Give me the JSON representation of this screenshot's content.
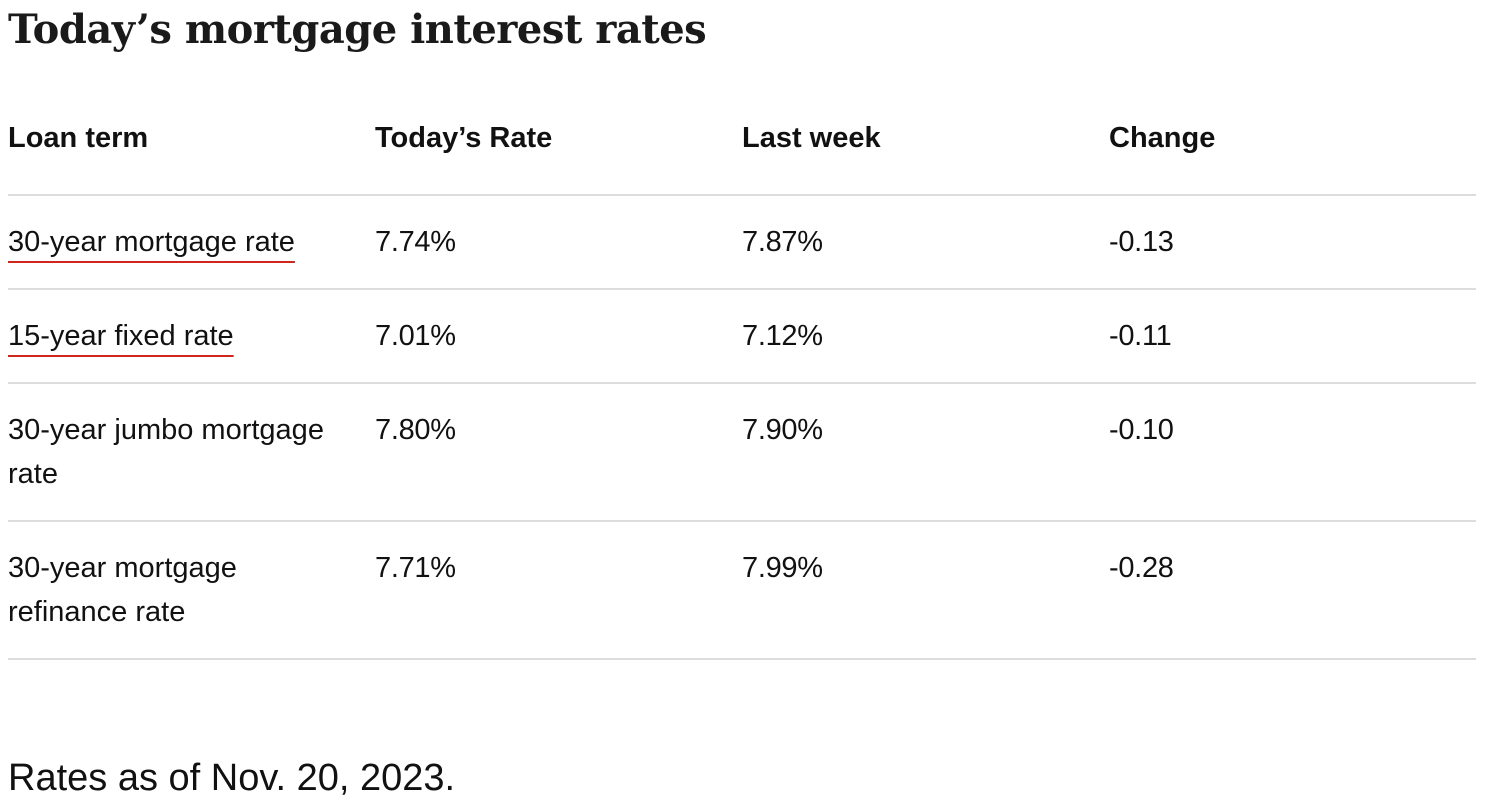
{
  "title": "Today’s mortgage interest rates",
  "table": {
    "headers": [
      "Loan term",
      "Today’s Rate",
      "Last week",
      "Change"
    ],
    "rows": [
      {
        "term": "30-year mortgage rate",
        "linked": true,
        "today": "7.74%",
        "last_week": "7.87%",
        "change": "-0.13"
      },
      {
        "term": "15-year fixed rate",
        "linked": true,
        "today": "7.01%",
        "last_week": "7.12%",
        "change": "-0.11"
      },
      {
        "term": "30-year jumbo mortgage rate",
        "linked": false,
        "today": "7.80%",
        "last_week": "7.90%",
        "change": "-0.10"
      },
      {
        "term": "30-year mortgage refinance rate",
        "linked": false,
        "today": "7.71%",
        "last_week": "7.99%",
        "change": "-0.28"
      }
    ]
  },
  "note": "Rates as of Nov. 20, 2023.",
  "colors": {
    "link_underline": "#d0261e",
    "row_border": "#dcdcdc",
    "text": "#111111"
  }
}
